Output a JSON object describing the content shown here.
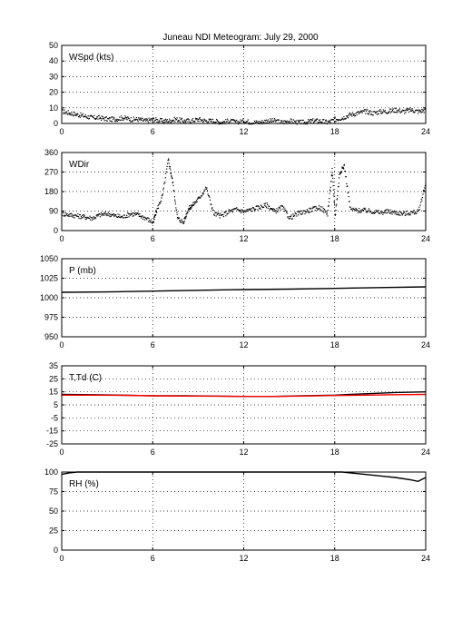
{
  "title": "Juneau NDI Meteogram:      July 29, 2000",
  "chart_data": [
    {
      "type": "scatter",
      "panel_label": "WSpd (kts)",
      "x_ticks": [
        0,
        6,
        12,
        18,
        24
      ],
      "y_ticks": [
        0,
        10,
        20,
        30,
        40,
        50
      ],
      "xlim": [
        0,
        24
      ],
      "ylim": [
        0,
        50
      ],
      "grid": true,
      "series": [
        {
          "color": "#000000",
          "x": [
            0,
            0.5,
            1,
            1.5,
            2,
            2.5,
            3,
            3.5,
            4,
            4.5,
            5,
            5.5,
            6,
            6.5,
            7,
            7.5,
            8,
            8.5,
            9,
            9.5,
            10,
            10.5,
            11,
            11.5,
            12,
            12.5,
            13,
            13.5,
            14,
            14.5,
            15,
            15.5,
            16,
            16.5,
            17,
            17.5,
            18,
            18.5,
            19,
            19.5,
            20,
            20.5,
            21,
            21.5,
            22,
            22.5,
            23,
            23.5,
            24
          ],
          "y": [
            8,
            7,
            6,
            5,
            4,
            4,
            3,
            3,
            4,
            3,
            3,
            2,
            3,
            2,
            2,
            3,
            2,
            2,
            3,
            2,
            2,
            1,
            2,
            1,
            2,
            1,
            1,
            2,
            2,
            1,
            2,
            1,
            1,
            2,
            2,
            1,
            3,
            4,
            6,
            7,
            8,
            7,
            8,
            8,
            9,
            8,
            9,
            8,
            9
          ]
        }
      ]
    },
    {
      "type": "scatter",
      "panel_label": "WDir",
      "x_ticks": [
        0,
        6,
        12,
        18,
        24
      ],
      "y_ticks": [
        0,
        90,
        180,
        270,
        360
      ],
      "xlim": [
        0,
        24
      ],
      "ylim": [
        0,
        360
      ],
      "grid": true,
      "series": [
        {
          "color": "#000000",
          "x": [
            0,
            0.5,
            1,
            1.5,
            2,
            2.5,
            3,
            3.5,
            4,
            4.5,
            5,
            5.5,
            6,
            6.2,
            6.6,
            7,
            7.3,
            7.6,
            8,
            8.3,
            8.6,
            9,
            9.5,
            10,
            10.5,
            11,
            11.5,
            12,
            12.5,
            13,
            13.5,
            14,
            14.5,
            15,
            15.5,
            16,
            16.5,
            17,
            17.5,
            17.8,
            18,
            18.3,
            18.6,
            19,
            19.5,
            20,
            20.5,
            21,
            21.5,
            22,
            22.5,
            23,
            23.5,
            24
          ],
          "y": [
            80,
            75,
            70,
            65,
            60,
            75,
            80,
            70,
            65,
            80,
            75,
            60,
            40,
            90,
            160,
            330,
            220,
            60,
            40,
            100,
            120,
            150,
            200,
            80,
            70,
            90,
            100,
            90,
            100,
            110,
            120,
            90,
            110,
            60,
            80,
            90,
            100,
            110,
            80,
            280,
            70,
            270,
            300,
            100,
            95,
            95,
            90,
            85,
            90,
            85,
            80,
            85,
            90,
            230
          ]
        }
      ]
    },
    {
      "type": "line",
      "panel_label": "P (mb)",
      "x_ticks": [
        0,
        6,
        12,
        18,
        24
      ],
      "y_ticks": [
        950,
        975,
        1000,
        1025,
        1050
      ],
      "xlim": [
        0,
        24
      ],
      "ylim": [
        950,
        1050
      ],
      "grid": true,
      "series": [
        {
          "color": "#000000",
          "x": [
            0,
            3,
            6,
            9,
            12,
            15,
            18,
            21,
            24
          ],
          "y": [
            1007,
            1007.5,
            1008.5,
            1009.5,
            1010.5,
            1011,
            1012,
            1013,
            1014
          ]
        }
      ]
    },
    {
      "type": "line",
      "panel_label": "T,Td (C)",
      "x_ticks": [
        0,
        6,
        12,
        18,
        24
      ],
      "y_ticks": [
        -25,
        -15,
        -5,
        5,
        15,
        25,
        35
      ],
      "xlim": [
        0,
        24
      ],
      "ylim": [
        -25,
        35
      ],
      "grid": true,
      "series": [
        {
          "color": "#000000",
          "x": [
            0,
            2,
            4,
            6,
            8,
            10,
            12,
            14,
            16,
            18,
            20,
            22,
            24
          ],
          "y": [
            13,
            12.8,
            12.5,
            12,
            12,
            11.8,
            11.5,
            11.5,
            12,
            12.5,
            13.5,
            14.5,
            15
          ]
        },
        {
          "color": "#ff0000",
          "x": [
            0,
            2,
            4,
            6,
            8,
            10,
            12,
            14,
            16,
            18,
            20,
            22,
            24
          ],
          "y": [
            12.5,
            12.5,
            12.3,
            12,
            11.8,
            11.7,
            11.5,
            11.5,
            11.8,
            12.2,
            12.5,
            12.8,
            13
          ]
        }
      ]
    },
    {
      "type": "line",
      "panel_label": "RH (%)",
      "x_ticks": [
        0,
        6,
        12,
        18,
        24
      ],
      "y_ticks": [
        0,
        25,
        50,
        75,
        100
      ],
      "xlim": [
        0,
        24
      ],
      "ylim": [
        0,
        100
      ],
      "grid": true,
      "series": [
        {
          "color": "#000000",
          "x": [
            0,
            0.5,
            1,
            1.3,
            18,
            18.5,
            19,
            20,
            21,
            22,
            23,
            23.5,
            24
          ],
          "y": [
            97,
            99,
            100,
            100,
            100,
            100,
            99,
            97,
            95,
            93,
            90,
            88,
            93
          ]
        }
      ]
    }
  ]
}
